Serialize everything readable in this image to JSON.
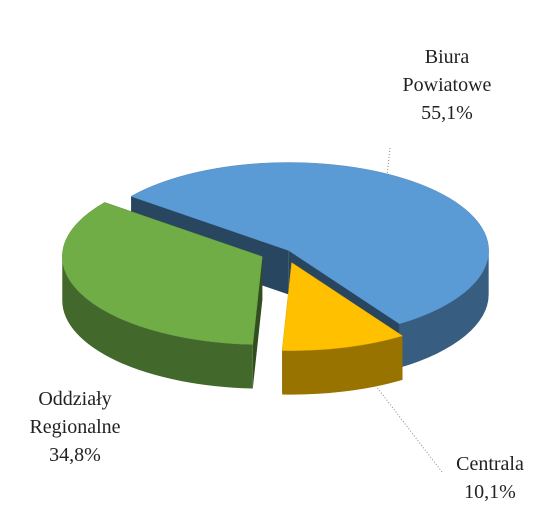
{
  "chart_data": {
    "type": "pie",
    "categories": [
      "Biura Powiatowe",
      "Centrala",
      "Oddziały Regionalne"
    ],
    "values": [
      55.1,
      10.1,
      34.8
    ],
    "value_labels": [
      "55,1%",
      "10,1%",
      "34,8%"
    ],
    "colors": [
      "#5b9bd5",
      "#ffc000",
      "#70ad47"
    ]
  }
}
